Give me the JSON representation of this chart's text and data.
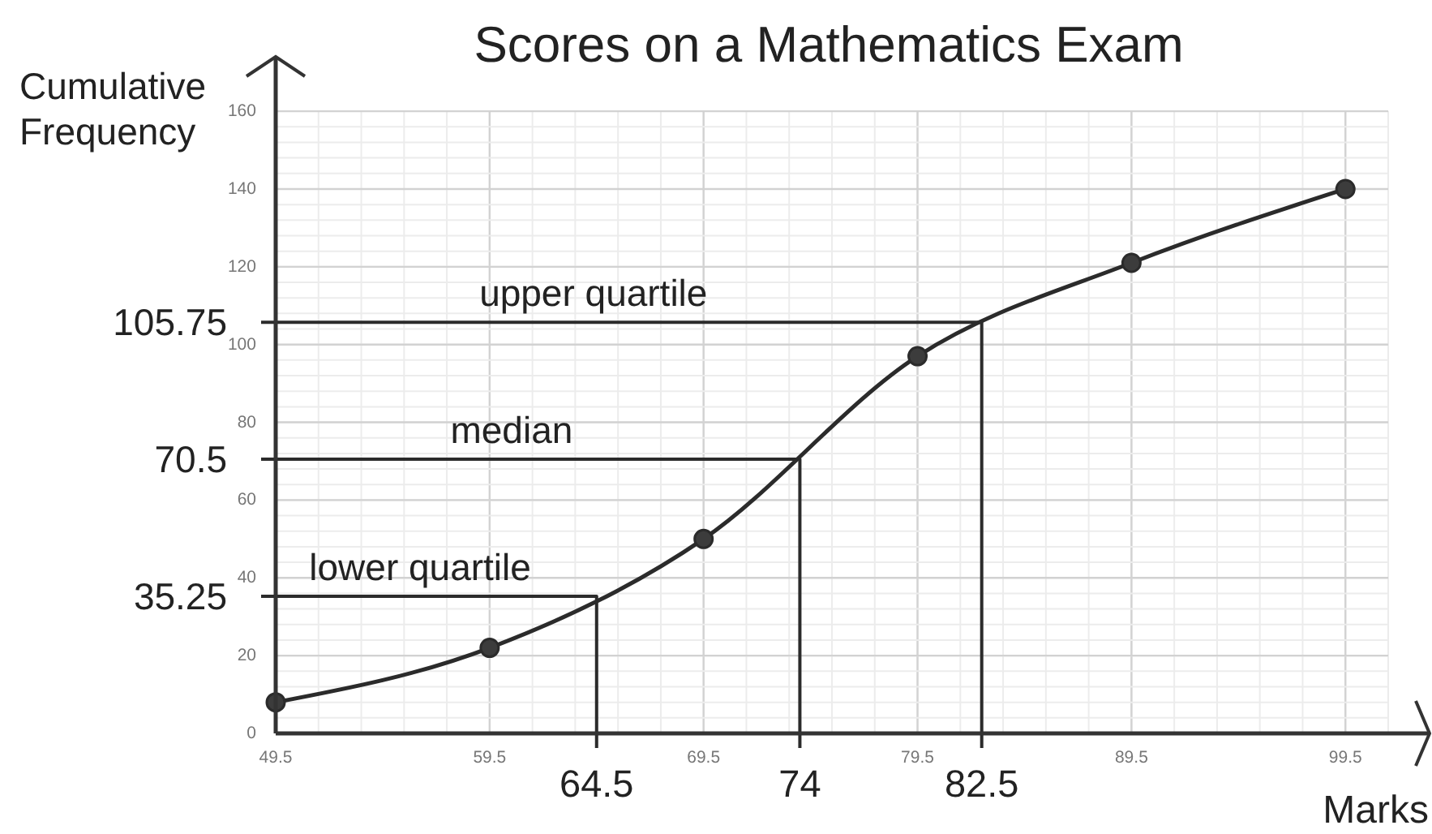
{
  "chart_data": {
    "type": "line",
    "title": "Scores on a Mathematics Exam",
    "xlabel": "Marks",
    "ylabel": "Cumulative Frequency",
    "xlim": [
      49.5,
      101.5
    ],
    "ylim": [
      0,
      174
    ],
    "xticks": [
      49.5,
      59.5,
      69.5,
      79.5,
      89.5,
      99.5
    ],
    "yticks": [
      0,
      20,
      40,
      60,
      80,
      100,
      120,
      140,
      160
    ],
    "grid": true,
    "series": [
      {
        "color": "#2b2b2b",
        "marker": "circle",
        "x": [
          49.5,
          59.5,
          69.5,
          79.5,
          89.5,
          99.5
        ],
        "values": [
          8,
          22,
          50,
          97,
          121,
          140
        ]
      },
      {
        "name": "lower quartile",
        "color": "#2b2b2b",
        "marker": "none",
        "x": [
          49.5,
          64.5,
          64.5
        ],
        "values": [
          35.25,
          35.25,
          0
        ]
      },
      {
        "name": "median",
        "color": "#2b2b2b",
        "marker": "none",
        "x": [
          49.5,
          74,
          74
        ],
        "values": [
          70.5,
          70.5,
          0
        ]
      },
      {
        "name": "upper quartile",
        "color": "#2b2b2b",
        "marker": "none",
        "x": [
          49.5,
          82.5,
          82.5
        ],
        "values": [
          105.75,
          105.75,
          0
        ]
      }
    ],
    "annotations": [
      {
        "text": "35.25",
        "x": 49.5,
        "y": 35.25
      },
      {
        "text": "70.5",
        "x": 49.5,
        "y": 70.5
      },
      {
        "text": "105.75",
        "x": 49.5,
        "y": 105.75
      },
      {
        "text": "64.5",
        "x": 64.5,
        "y": 0
      },
      {
        "text": "74",
        "x": 74,
        "y": 0
      },
      {
        "text": "82.5",
        "x": 82.5,
        "y": 0
      }
    ]
  }
}
